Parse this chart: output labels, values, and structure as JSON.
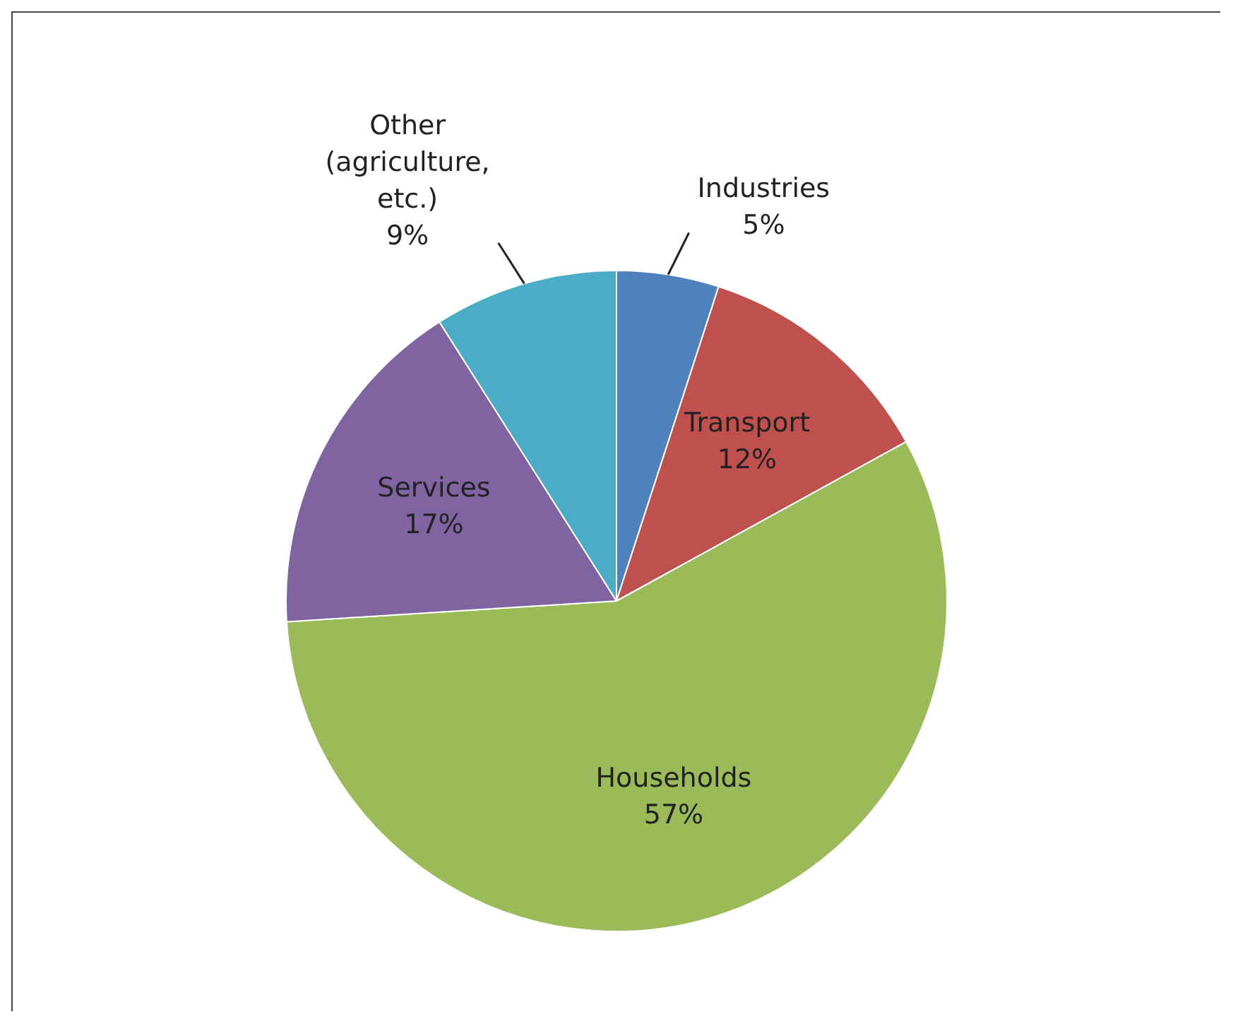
{
  "chart_data": {
    "type": "pie",
    "categories": [
      "Industries",
      "Transport",
      "Households",
      "Services",
      "Other (agriculture, etc.)"
    ],
    "values": [
      5,
      12,
      57,
      17,
      9
    ],
    "colors": [
      "#4f81bd",
      "#c0504d",
      "#9bbb59",
      "#8064a2",
      "#4bacc6"
    ],
    "value_labels": [
      "5%",
      "12%",
      "57%",
      "17%",
      "9%"
    ],
    "legend": false
  }
}
